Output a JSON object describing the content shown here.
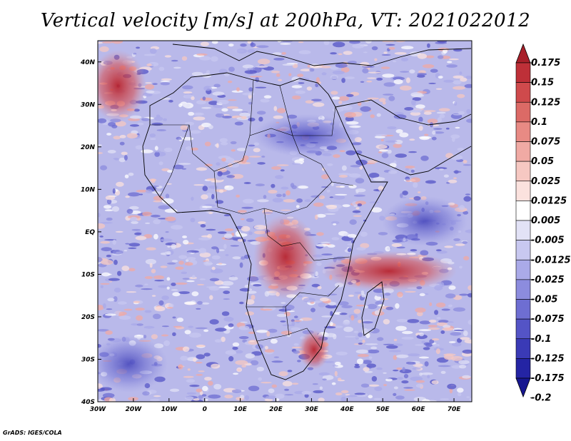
{
  "title": "Vertical velocity [m/s] at 200hPa, VT: 2021022012",
  "credit": "GrADS: IGES/COLA",
  "map": {
    "projection": "latlon",
    "lon_range": [
      -30,
      75
    ],
    "lat_range": [
      -40,
      45
    ],
    "x_ticks": [
      "30W",
      "20W",
      "10W",
      "0",
      "10E",
      "20E",
      "30E",
      "40E",
      "50E",
      "60E",
      "70E"
    ],
    "x_tick_values": [
      -30,
      -20,
      -10,
      0,
      10,
      20,
      30,
      40,
      50,
      60,
      70
    ],
    "y_ticks": [
      "40N",
      "30N",
      "20N",
      "10N",
      "EQ",
      "10S",
      "20S",
      "30S",
      "40S"
    ],
    "y_tick_values": [
      40,
      30,
      20,
      10,
      0,
      -10,
      -20,
      -30,
      -40
    ],
    "field": "vertical velocity",
    "units": "m/s",
    "level": "200hPa",
    "valid_time": "2021022012"
  },
  "colorbar": {
    "labels": [
      "0.175",
      "0.15",
      "0.125",
      "0.1",
      "0.075",
      "0.05",
      "0.025",
      "0.0125",
      "0.005",
      "-0.005",
      "-0.0125",
      "-0.025",
      "-0.05",
      "-0.075",
      "-0.1",
      "-0.125",
      "-0.175",
      "-0.2"
    ],
    "colors": [
      "#a8202a",
      "#be3038",
      "#cf4a4c",
      "#dc6a66",
      "#e88a84",
      "#f0aaa4",
      "#f6c8c2",
      "#fbe2de",
      "#ffffff",
      "#e2e2f6",
      "#c8c8f0",
      "#aaaae8",
      "#8c8cde",
      "#6e6ed2",
      "#5454c6",
      "#3a3ab6",
      "#2424a4",
      "#161690"
    ],
    "range": [
      -0.2,
      0.175
    ]
  }
}
